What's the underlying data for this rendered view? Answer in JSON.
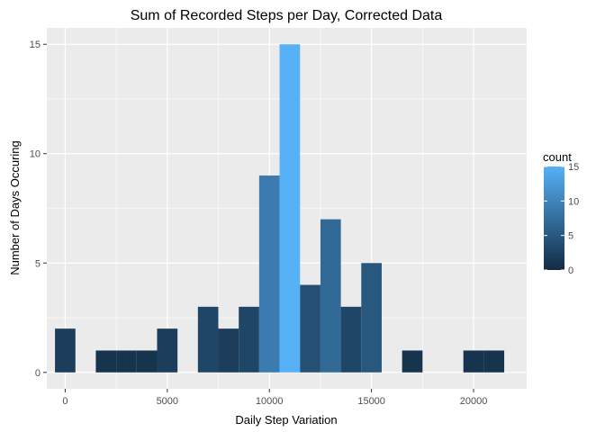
{
  "chart_data": {
    "type": "bar",
    "title": "Sum of Recorded Steps per Day, Corrected Data",
    "xlabel": "Daily Step Variation",
    "ylabel": "Number of Days Occuring",
    "xlim": [
      -900,
      22600
    ],
    "ylim": [
      -0.75,
      15.75
    ],
    "x_ticks": [
      0,
      5000,
      10000,
      15000,
      20000
    ],
    "x_tick_labels": [
      "0",
      "5000",
      "10000",
      "15000",
      "20000"
    ],
    "y_ticks": [
      0,
      5,
      10,
      15
    ],
    "y_tick_labels": [
      "0",
      "5",
      "10",
      "15"
    ],
    "grid": true,
    "bin_width": 1000,
    "bars": [
      {
        "x_start": -500,
        "x_end": 500,
        "count": 2
      },
      {
        "x_start": 1500,
        "x_end": 2500,
        "count": 1
      },
      {
        "x_start": 2500,
        "x_end": 3500,
        "count": 1
      },
      {
        "x_start": 3500,
        "x_end": 4500,
        "count": 1
      },
      {
        "x_start": 4500,
        "x_end": 5500,
        "count": 2
      },
      {
        "x_start": 6500,
        "x_end": 7500,
        "count": 3
      },
      {
        "x_start": 7500,
        "x_end": 8500,
        "count": 2
      },
      {
        "x_start": 8500,
        "x_end": 9500,
        "count": 3
      },
      {
        "x_start": 9500,
        "x_end": 10500,
        "count": 9
      },
      {
        "x_start": 10500,
        "x_end": 11500,
        "count": 15
      },
      {
        "x_start": 11500,
        "x_end": 12500,
        "count": 4
      },
      {
        "x_start": 12500,
        "x_end": 13500,
        "count": 7
      },
      {
        "x_start": 13500,
        "x_end": 14500,
        "count": 3
      },
      {
        "x_start": 14500,
        "x_end": 15500,
        "count": 5
      },
      {
        "x_start": 16500,
        "x_end": 17500,
        "count": 1
      },
      {
        "x_start": 19500,
        "x_end": 20500,
        "count": 1
      },
      {
        "x_start": 20500,
        "x_end": 21500,
        "count": 1
      }
    ],
    "legend": {
      "title": "count",
      "position": "right",
      "range": [
        0,
        15
      ],
      "ticks": [
        0,
        5,
        10,
        15
      ],
      "tick_labels": [
        "0",
        "5",
        "10",
        "15"
      ],
      "color_low": "#132B43",
      "color_high": "#56B1F7"
    },
    "panel_background": "#EBEBEB",
    "grid_color": "#FFFFFF"
  }
}
